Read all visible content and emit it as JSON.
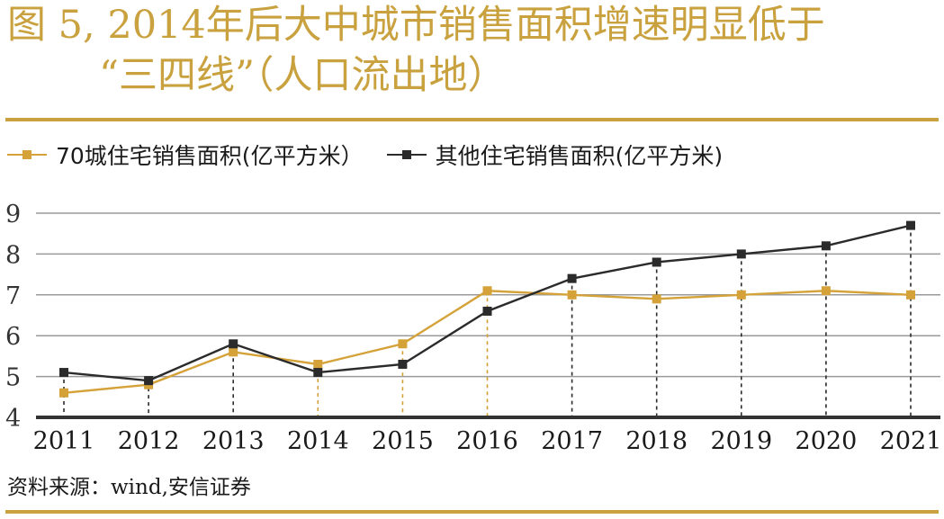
{
  "header": {
    "title_line1": "图 5, 2014年后大中城市销售面积增速明显低于",
    "title_line2": "“三四线”（人口流出地）"
  },
  "source_note": "资料来源：wind,安信证券",
  "colors": {
    "accent": "#c9a23f",
    "series1": "#d4a238",
    "series2": "#2b2b2b",
    "grid": "#9a9a9a",
    "axis": "#333333"
  },
  "chart_data": {
    "type": "line",
    "x": [
      "2011",
      "2012",
      "2013",
      "2014",
      "2015",
      "2016",
      "2017",
      "2018",
      "2019",
      "2020",
      "2021"
    ],
    "ylim": [
      4,
      9
    ],
    "yticks": [
      "4",
      "5",
      "6",
      "7",
      "8",
      "9"
    ],
    "grid": true,
    "legend_position": "top-left",
    "series": [
      {
        "name": "70城住宅销售面积(亿平方米）",
        "color": "#d4a238",
        "values": [
          4.6,
          4.8,
          5.6,
          5.3,
          5.8,
          7.1,
          7.0,
          6.9,
          7.0,
          7.1,
          7.0
        ]
      },
      {
        "name": "其他住宅销售面积(亿平方米)",
        "color": "#2b2b2b",
        "values": [
          5.1,
          4.9,
          5.8,
          5.1,
          5.3,
          6.6,
          7.4,
          7.8,
          8.0,
          8.2,
          8.7
        ]
      }
    ]
  }
}
